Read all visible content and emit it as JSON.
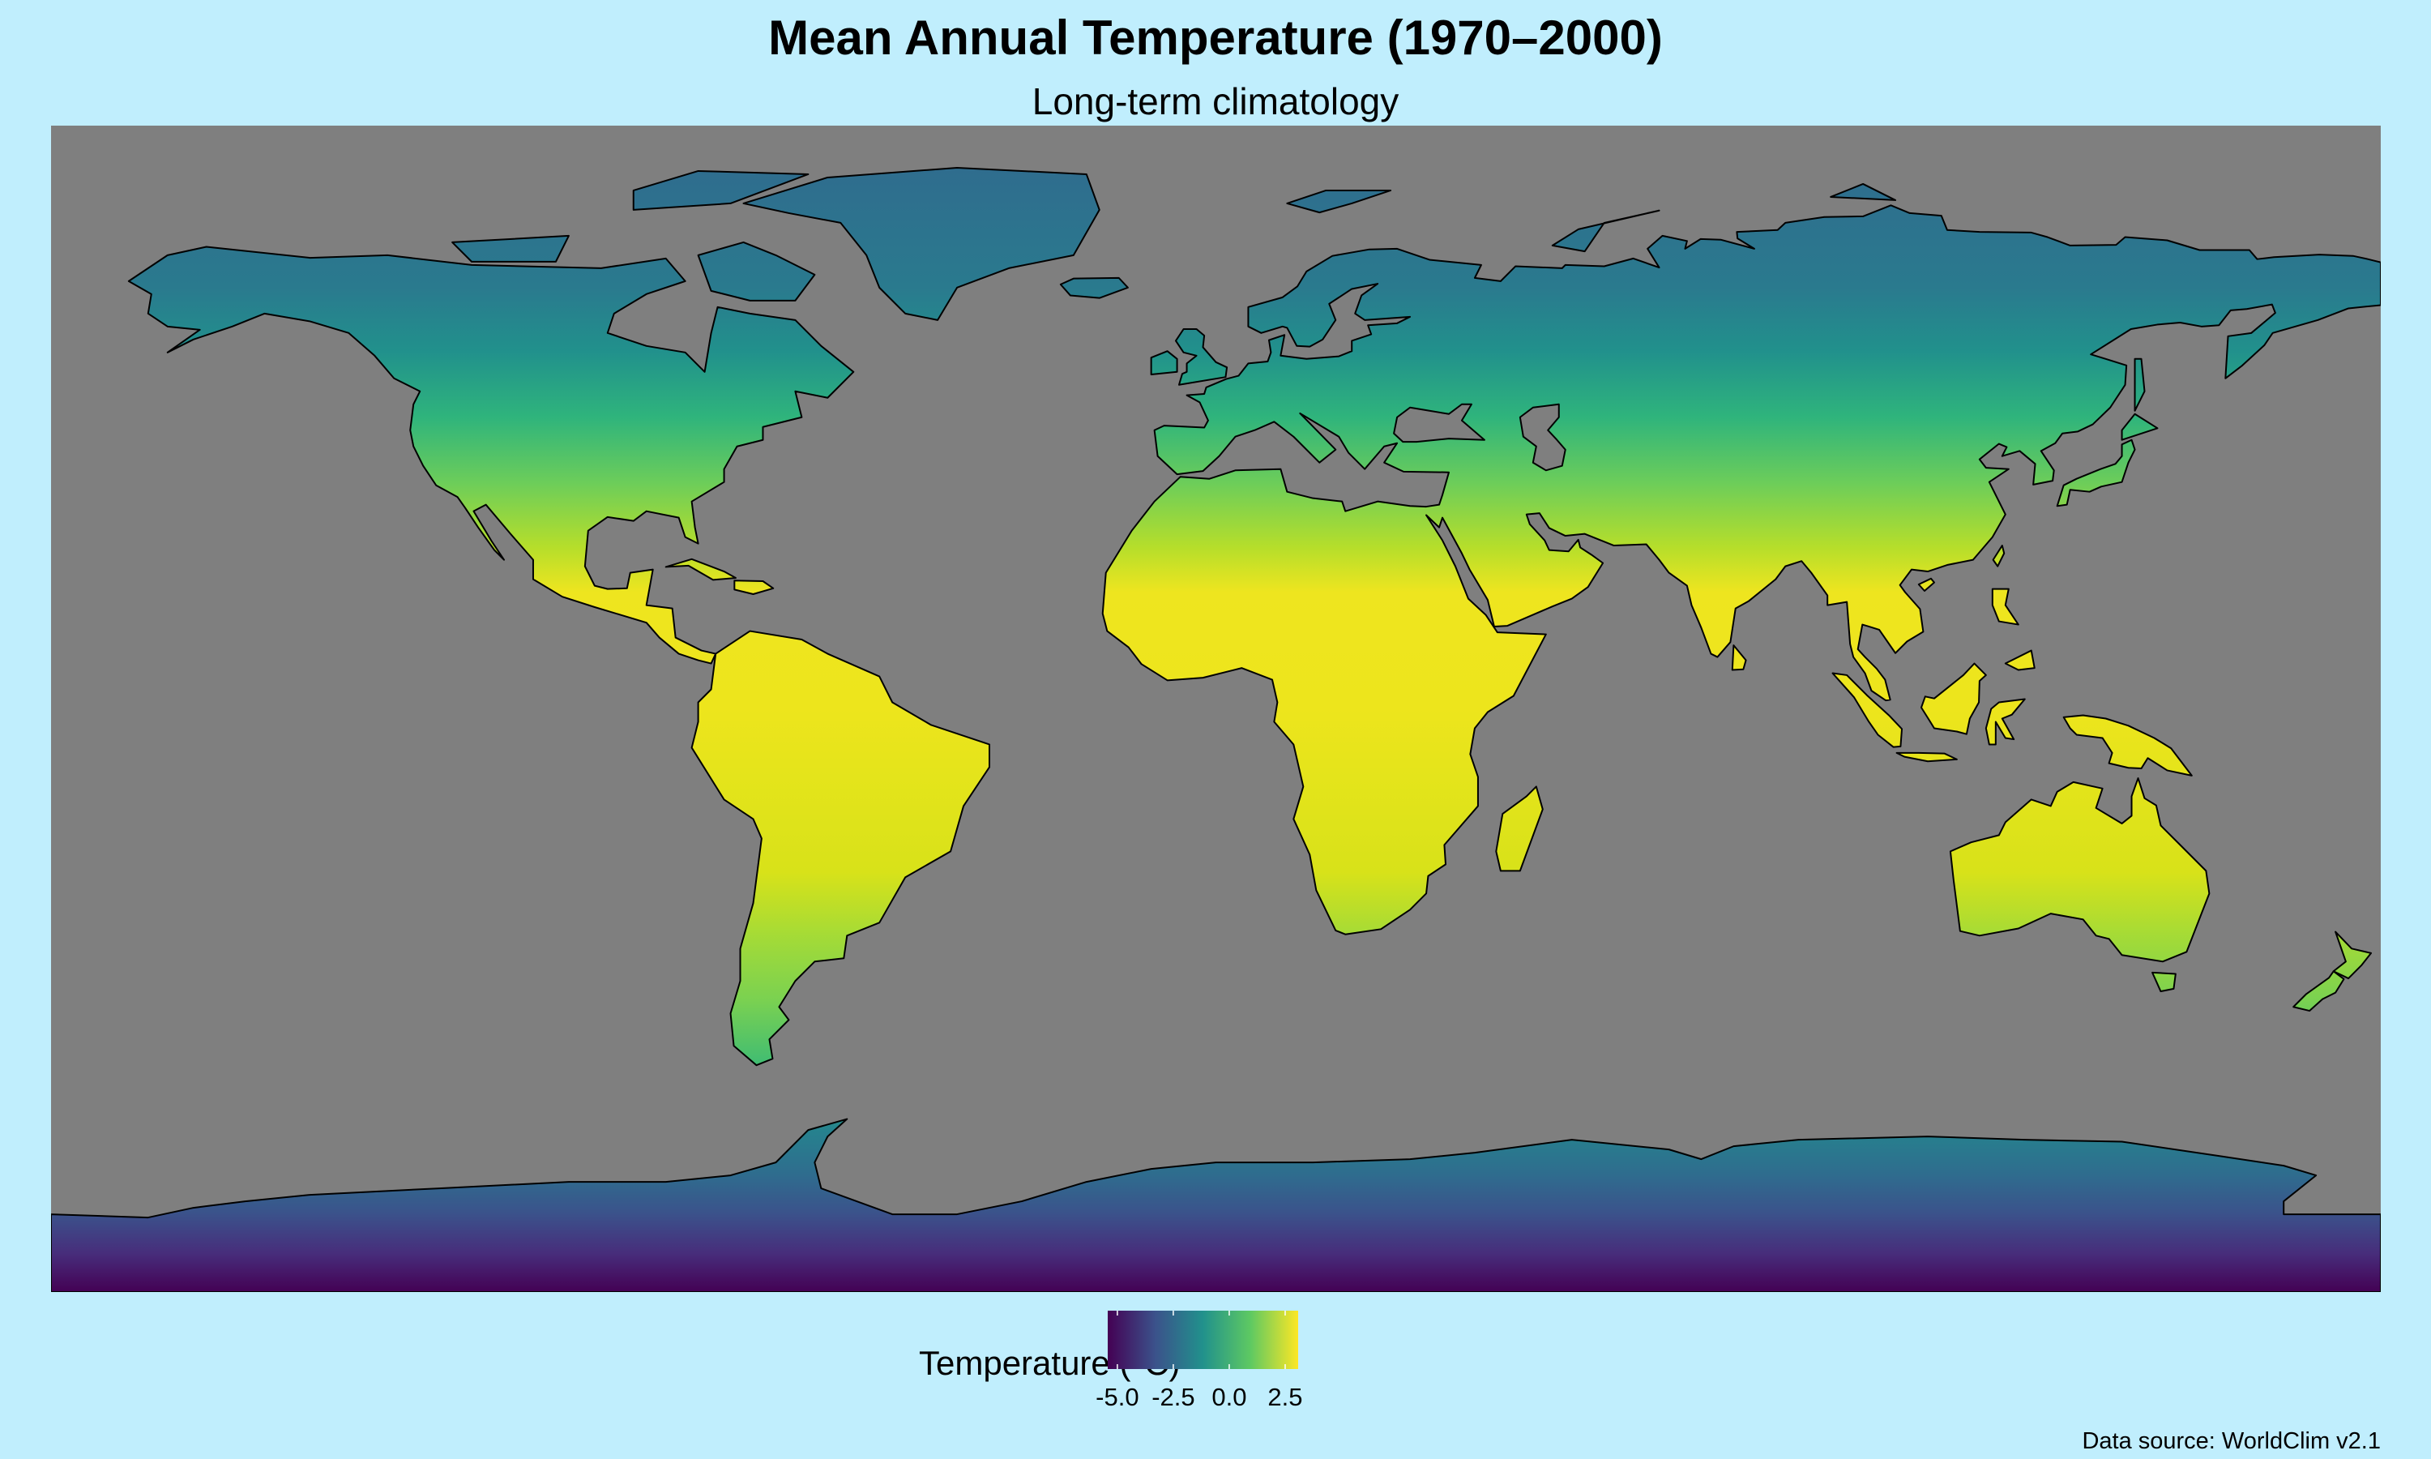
{
  "title": "Mean Annual Temperature (1970–2000)",
  "subtitle": "Long-term climatology",
  "caption": "Data source: WorldClim v2.1",
  "map": {
    "projection": "equirectangular",
    "extent": {
      "lon": [
        -180,
        180
      ],
      "lat": [
        -90,
        90
      ]
    },
    "ocean_color": "#7f7f7f",
    "coastline_color": "#000000",
    "fill_variable": "Mean annual temperature",
    "palette": "viridis"
  },
  "legend": {
    "title": "Temperature (°C)",
    "limits": [
      -5.43,
      3.08
    ],
    "ticks": [
      {
        "value": -5.0,
        "label": "-5.0"
      },
      {
        "value": -2.5,
        "label": "-2.5"
      },
      {
        "value": 0.0,
        "label": "0.0"
      },
      {
        "value": 2.5,
        "label": "2.5"
      }
    ],
    "colors": [
      "#440154",
      "#3b528b",
      "#21918c",
      "#5ec962",
      "#fde725"
    ]
  },
  "background_color": "#c0eefd"
}
